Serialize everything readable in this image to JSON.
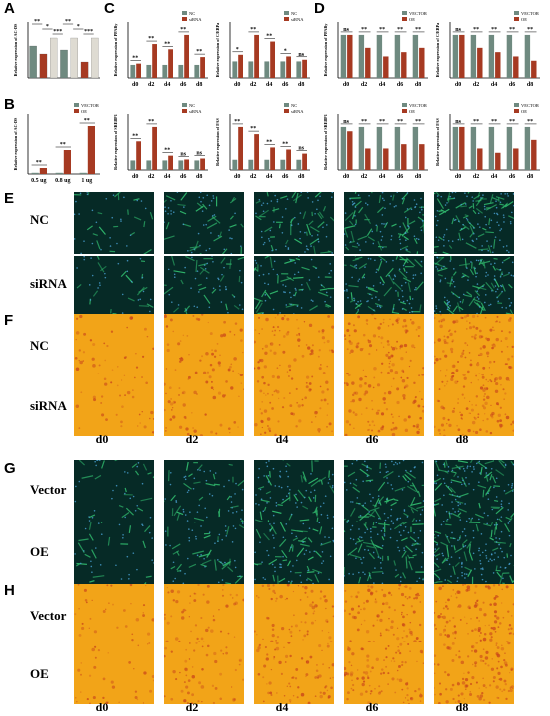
{
  "panel_letters": [
    "A",
    "B",
    "C",
    "D",
    "E",
    "F",
    "G",
    "H"
  ],
  "columns": [
    "d0",
    "d2",
    "d4",
    "d6",
    "d8"
  ],
  "rows": {
    "E": [
      "NC",
      "siRNA"
    ],
    "F": [
      "NC",
      "siRNA"
    ],
    "G": [
      "Vector",
      "OE"
    ],
    "H": [
      "Vector",
      "OE"
    ]
  },
  "colors": {
    "grey_bar": "#6f8a80",
    "red_bar": "#a63a22",
    "light_bar": "#dedbd2",
    "fluor_bg": "#062a26",
    "fluor_cell": "#2fb56b",
    "fluor_nuc": "#4aa3d6",
    "oil_bg": "#f2a418",
    "oil_drop": "#c9461a"
  },
  "chart_data": [
    {
      "id": "A",
      "type": "bar",
      "ylabel": "Relative expression of AC-DS",
      "values": [
        0.8,
        0.6,
        1.0,
        0.7,
        1.0,
        0.4,
        1.0
      ],
      "colors": [
        "grey",
        "red",
        "light",
        "grey",
        "light",
        "red",
        "light"
      ],
      "ylim": [
        0,
        1.4
      ],
      "annotations": [
        "**",
        "*",
        "***",
        "**",
        "*",
        "***"
      ]
    },
    {
      "id": "B",
      "type": "bar",
      "ylabel": "Relative expression of AC-DS",
      "categories": [
        "0.5 ug",
        "0.8 ug",
        "1 ug"
      ],
      "series": [
        {
          "name": "VECTOR",
          "values": [
            1,
            1,
            1
          ]
        },
        {
          "name": "OE",
          "values": [
            5,
            20,
            40
          ]
        }
      ],
      "ylim": [
        0,
        50
      ],
      "annotations": [
        "**",
        "**",
        "**"
      ]
    },
    {
      "id": "C1",
      "type": "bar",
      "ylabel": "Relative expression of PPARy",
      "categories": [
        "d0",
        "d2",
        "d4",
        "d6",
        "d8"
      ],
      "series": [
        {
          "name": "NC",
          "values": [
            1.0,
            1.0,
            1.0,
            1.0,
            1.0
          ]
        },
        {
          "name": "siRNA",
          "values": [
            1.1,
            2.6,
            2.2,
            3.3,
            1.6
          ]
        }
      ],
      "annotations": [
        "**",
        "**",
        "**",
        "**",
        "**"
      ]
    },
    {
      "id": "C2",
      "type": "bar",
      "ylabel": "Relative expression of C/EBPa",
      "categories": [
        "d0",
        "d2",
        "d4",
        "d6",
        "d8"
      ],
      "series": [
        {
          "name": "NC",
          "values": [
            1.0,
            1.0,
            1.0,
            1.0,
            1.0
          ]
        },
        {
          "name": "siRNA",
          "values": [
            1.4,
            2.6,
            2.2,
            1.3,
            1.1
          ]
        }
      ],
      "annotations": [
        "*",
        "**",
        "**",
        "*",
        "ns"
      ]
    },
    {
      "id": "C3",
      "type": "bar",
      "ylabel": "Relative expression of SREBP1",
      "categories": [
        "d0",
        "d2",
        "d4",
        "d6",
        "d8"
      ],
      "series": [
        {
          "name": "NC",
          "values": [
            1.0,
            1.0,
            1.0,
            1.0,
            1.0
          ]
        },
        {
          "name": "siRNA",
          "values": [
            3.0,
            4.5,
            1.5,
            1.1,
            1.2
          ]
        }
      ],
      "annotations": [
        "**",
        "**",
        "**",
        "ns",
        "ns"
      ]
    },
    {
      "id": "C4",
      "type": "bar",
      "ylabel": "Relative expression of FAS",
      "categories": [
        "d0",
        "d2",
        "d4",
        "d6",
        "d8"
      ],
      "series": [
        {
          "name": "NC",
          "values": [
            1.0,
            1.0,
            1.0,
            1.0,
            1.0
          ]
        },
        {
          "name": "siRNA",
          "values": [
            4.2,
            3.5,
            2.2,
            2.0,
            1.6
          ]
        }
      ],
      "annotations": [
        "**",
        "**",
        "**",
        "**",
        "ns"
      ]
    },
    {
      "id": "D1",
      "type": "bar",
      "ylabel": "Relative expression of PPARy",
      "categories": [
        "d0",
        "d2",
        "d4",
        "d6",
        "d8"
      ],
      "series": [
        {
          "name": "VECTOR",
          "values": [
            1.0,
            1.0,
            1.0,
            1.0,
            1.0
          ]
        },
        {
          "name": "OE",
          "values": [
            1.0,
            0.7,
            0.5,
            0.6,
            0.7
          ]
        }
      ],
      "annotations": [
        "ns",
        "**",
        "**",
        "**",
        "**"
      ]
    },
    {
      "id": "D2",
      "type": "bar",
      "ylabel": "Relative expression of C/EBPa",
      "categories": [
        "d0",
        "d2",
        "d4",
        "d6",
        "d8"
      ],
      "series": [
        {
          "name": "VECTOR",
          "values": [
            1.0,
            1.0,
            1.0,
            1.0,
            1.0
          ]
        },
        {
          "name": "OE",
          "values": [
            1.0,
            0.7,
            0.6,
            0.5,
            0.4
          ]
        }
      ],
      "annotations": [
        "ns",
        "**",
        "**",
        "**",
        "**"
      ]
    },
    {
      "id": "D3",
      "type": "bar",
      "ylabel": "Relative expression of SREBP1",
      "categories": [
        "d0",
        "d2",
        "d4",
        "d6",
        "d8"
      ],
      "series": [
        {
          "name": "VECTOR",
          "values": [
            1.0,
            1.0,
            1.0,
            1.0,
            1.0
          ]
        },
        {
          "name": "OE",
          "values": [
            0.9,
            0.5,
            0.5,
            0.6,
            0.6
          ]
        }
      ],
      "annotations": [
        "ns",
        "**",
        "**",
        "**",
        "**"
      ]
    },
    {
      "id": "D4",
      "type": "bar",
      "ylabel": "Relative expression of FAS",
      "categories": [
        "d0",
        "d2",
        "d4",
        "d6",
        "d8"
      ],
      "series": [
        {
          "name": "VECTOR",
          "values": [
            1.0,
            1.0,
            1.0,
            1.0,
            1.0
          ]
        },
        {
          "name": "OE",
          "values": [
            1.0,
            0.5,
            0.4,
            0.5,
            0.7
          ]
        }
      ],
      "annotations": [
        "ns",
        "**",
        "**",
        "**",
        "**"
      ]
    }
  ]
}
